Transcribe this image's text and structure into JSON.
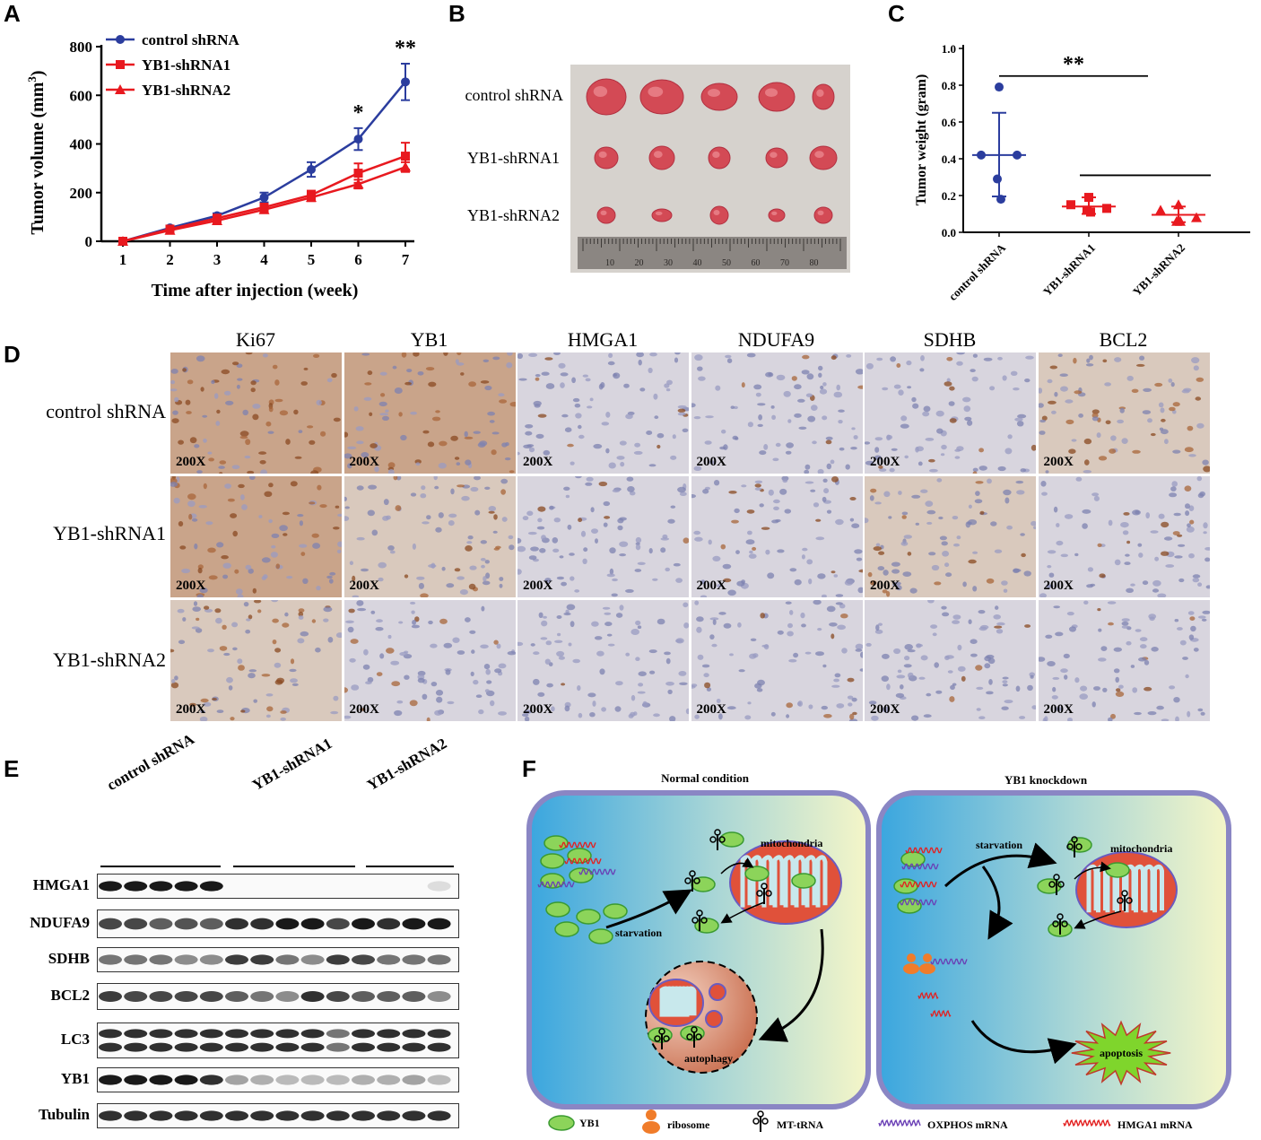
{
  "figure": {
    "panels": {
      "a": "A",
      "b": "B",
      "c": "C",
      "d": "D",
      "e": "E",
      "f": "F"
    },
    "colors": {
      "control": "#2b3d9e",
      "yb1": "#e8191f",
      "cell_membrane": "#8a86c4",
      "mito": "#e0513a",
      "yb1_protein": "#8cd45a",
      "ribosome": "#f07c2a",
      "oxphos_mrna": "#6a3fb5",
      "hmga1_mrna": "#e32020",
      "apoptosis": "#7fd52c"
    },
    "panel_b": {
      "rows": [
        "control shRNA",
        "YB1-shRNA1",
        "YB1-shRNA2"
      ],
      "ruler_ticks": [
        "10",
        "20",
        "30",
        "40",
        "50",
        "60",
        "70",
        "80"
      ]
    },
    "panel_d": {
      "columns": [
        "Ki67",
        "YB1",
        "HMGA1",
        "NDUFA9",
        "SDHB",
        "BCL2"
      ],
      "rows": [
        "control shRNA",
        "YB1-shRNA1",
        "YB1-shRNA2"
      ],
      "magnification": "200X"
    },
    "panel_e": {
      "groups": [
        "control shRNA",
        "YB1-shRNA1",
        "YB1-shRNA2"
      ],
      "proteins": [
        "HMGA1",
        "NDUFA9",
        "SDHB",
        "BCL2",
        "LC3",
        "YB1",
        "Tubulin"
      ]
    },
    "panel_f": {
      "left_title": "Normal condition",
      "right_title": "YB1 knockdown",
      "labels": {
        "mitochondria": "mitochondria",
        "starvation": "starvation",
        "autophagy": "autophagy",
        "apoptosis": "apoptosis"
      },
      "legend": [
        "YB1",
        "ribosome",
        "MT-tRNA",
        "OXPHOS mRNA",
        "HMGA1 mRNA"
      ]
    }
  },
  "chart_data": [
    {
      "type": "line",
      "panel": "A",
      "xlabel": "Time after injection (week)",
      "ylabel": "Tumor volume (mm3)",
      "x": [
        1,
        2,
        3,
        4,
        5,
        6,
        7
      ],
      "xlim": [
        1,
        7
      ],
      "ylim": [
        0,
        800
      ],
      "yticks": [
        0,
        200,
        400,
        600,
        800
      ],
      "legend_position": "top-left",
      "series": [
        {
          "name": "control shRNA",
          "marker": "circle",
          "color": "#2b3d9e",
          "values": [
            0,
            55,
            105,
            180,
            295,
            420,
            655
          ],
          "errors": [
            0,
            6,
            10,
            20,
            30,
            45,
            75
          ]
        },
        {
          "name": "YB1-shRNA1",
          "marker": "square",
          "color": "#e8191f",
          "values": [
            0,
            50,
            95,
            140,
            190,
            280,
            350
          ],
          "errors": [
            0,
            5,
            8,
            12,
            18,
            40,
            55
          ]
        },
        {
          "name": "YB1-shRNA2",
          "marker": "triangle",
          "color": "#e8191f",
          "values": [
            0,
            45,
            85,
            130,
            180,
            235,
            305
          ],
          "errors": [
            0,
            5,
            7,
            12,
            15,
            18,
            20
          ]
        }
      ],
      "annotations": [
        {
          "x": 6,
          "text": "*"
        },
        {
          "x": 7,
          "text": "**"
        }
      ]
    },
    {
      "type": "scatter",
      "panel": "C",
      "ylabel": "Tumor weight (gram)",
      "categories": [
        "control shRNA",
        "YB1-shRNA1",
        "YB1-shRNA2"
      ],
      "ylim": [
        0,
        1.0
      ],
      "yticks": [
        "0.0",
        "0.2",
        "0.4",
        "0.6",
        "0.8",
        "1.0"
      ],
      "series": [
        {
          "name": "control shRNA",
          "marker": "circle",
          "color": "#2b3d9e",
          "points": [
            0.79,
            0.42,
            0.42,
            0.29,
            0.18
          ],
          "mean": 0.42,
          "sd_low": 0.195,
          "sd_high": 0.65
        },
        {
          "name": "YB1-shRNA1",
          "marker": "square",
          "color": "#e8191f",
          "points": [
            0.19,
            0.15,
            0.13,
            0.12,
            0.11
          ],
          "mean": 0.14,
          "sd_low": 0.1,
          "sd_high": 0.19
        },
        {
          "name": "YB1-shRNA2",
          "marker": "triangle",
          "color": "#e8191f",
          "points": [
            0.15,
            0.12,
            0.08,
            0.06,
            0.06
          ],
          "mean": 0.095,
          "sd_low": 0.055,
          "sd_high": 0.14
        }
      ],
      "significance": [
        {
          "text": "**",
          "between": [
            0,
            1
          ]
        },
        {
          "text": "",
          "between": [
            1,
            2
          ]
        }
      ]
    }
  ]
}
